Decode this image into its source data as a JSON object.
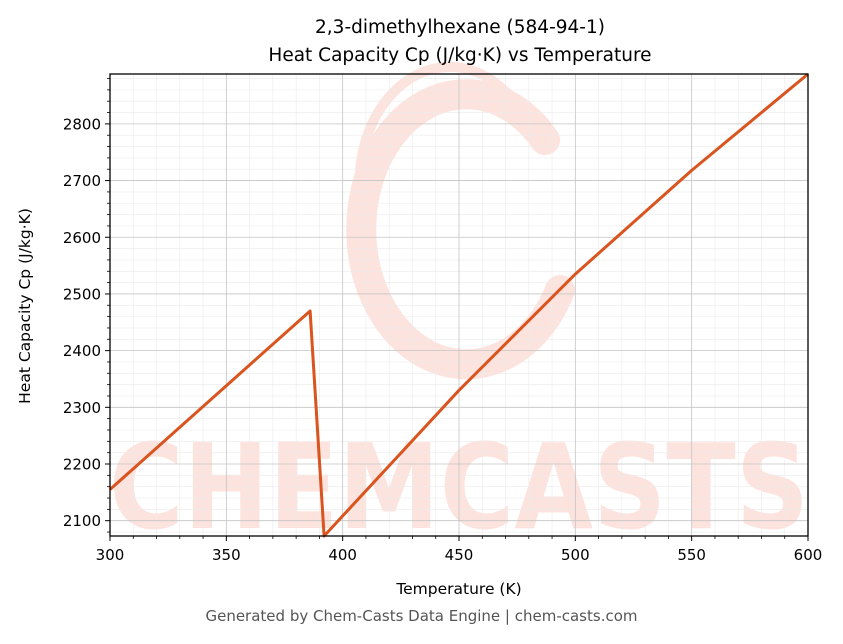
{
  "chart_data": {
    "type": "line",
    "title": "2,3-dimethylhexane (584-94-1)",
    "subtitle": "Heat Capacity Cp (J/kg·K) vs Temperature",
    "xlabel": "Temperature (K)",
    "ylabel": "Heat Capacity Cp (J/kg·K)",
    "xlim": [
      300,
      600
    ],
    "ylim": [
      2073,
      2888
    ],
    "xticks": [
      300,
      350,
      400,
      450,
      500,
      550,
      600
    ],
    "yticks": [
      2100,
      2200,
      2300,
      2400,
      2500,
      2600,
      2700,
      2800
    ],
    "grid": true,
    "minor_grid": true,
    "series": [
      {
        "color": "#d9541e",
        "x": [
          300,
          386,
          392,
          450,
          500,
          550,
          600
        ],
        "y": [
          2155,
          2470,
          2073,
          2330,
          2535,
          2718,
          2888
        ]
      }
    ],
    "watermark": "CHEMCASTS",
    "watermark_color": "#fde3de"
  },
  "footer": "Generated by Chem-Casts Data Engine | chem-casts.com"
}
